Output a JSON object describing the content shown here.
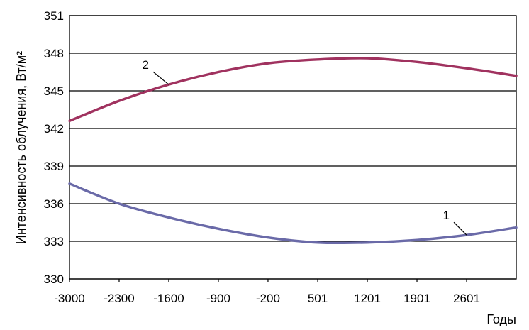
{
  "chart_data": {
    "type": "line",
    "title": "",
    "xlabel": "Годы",
    "ylabel": "Интенсивность облучения, Вт/м²",
    "xlim": [
      -3000,
      3301
    ],
    "ylim": [
      330,
      351
    ],
    "x_ticks": [
      "-3000",
      "-2300",
      "-1600",
      "-900",
      "-200",
      "501",
      "1201",
      "1901",
      "2601"
    ],
    "y_ticks": [
      "330",
      "333",
      "336",
      "339",
      "342",
      "345",
      "348",
      "351"
    ],
    "grid": "horizontal",
    "legend": "none",
    "series": [
      {
        "name": "1",
        "color": "#6a6aa8",
        "x": [
          -3000,
          -2300,
          -1600,
          -900,
          -200,
          501,
          1201,
          1901,
          2601,
          3301
        ],
        "y": [
          337.6,
          336.0,
          334.9,
          334.0,
          333.3,
          332.9,
          332.9,
          333.1,
          333.5,
          334.1
        ]
      },
      {
        "name": "2",
        "color": "#a0325f",
        "x": [
          -3000,
          -2300,
          -1600,
          -900,
          -200,
          501,
          1201,
          1901,
          2601,
          3301
        ],
        "y": [
          342.6,
          344.2,
          345.5,
          346.5,
          347.2,
          347.5,
          347.6,
          347.3,
          346.8,
          346.2
        ]
      }
    ]
  }
}
